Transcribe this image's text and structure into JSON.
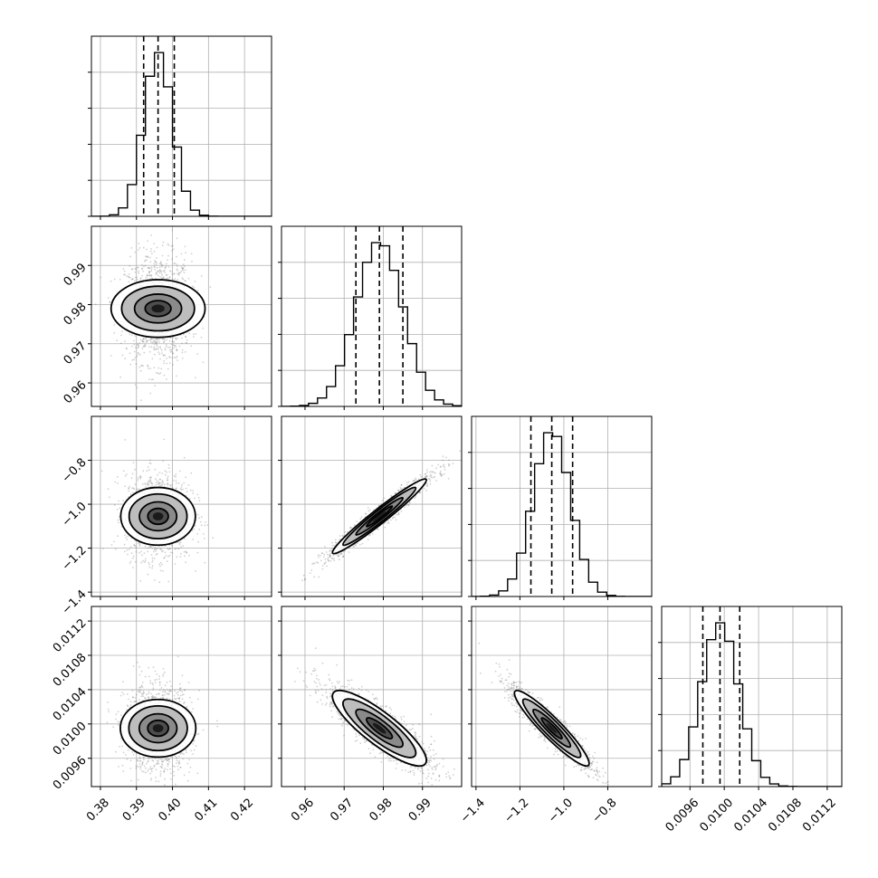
{
  "chart_data": {
    "type": "corner",
    "parameters": [
      {
        "index": 0,
        "range": [
          0.3775,
          0.4275
        ],
        "ticks": [
          "0.38",
          "0.39",
          "0.40",
          "0.41",
          "0.42"
        ],
        "tick_values": [
          0.38,
          0.39,
          0.4,
          0.41,
          0.42
        ],
        "mean": 0.396,
        "std": 0.004,
        "quantiles": [
          0.392,
          0.396,
          0.4005
        ]
      },
      {
        "index": 1,
        "range": [
          0.954,
          1.0
        ],
        "ticks": [
          "0.96",
          "0.97",
          "0.98",
          "0.99"
        ],
        "tick_values": [
          0.96,
          0.97,
          0.98,
          0.99
        ],
        "mean": 0.979,
        "std": 0.006,
        "quantiles": [
          0.973,
          0.979,
          0.985
        ]
      },
      {
        "index": 2,
        "range": [
          -1.42,
          -0.6
        ],
        "ticks": [
          "−1.4",
          "−1.2",
          "−1.0",
          "−0.8"
        ],
        "tick_values": [
          -1.4,
          -1.2,
          -1.0,
          -0.8
        ],
        "mean": -1.055,
        "std": 0.085,
        "quantiles": [
          -1.15,
          -1.055,
          -0.96
        ]
      },
      {
        "index": 3,
        "range": [
          0.00927,
          0.01137
        ],
        "ticks": [
          "0.0096",
          "0.0100",
          "0.0104",
          "0.0108",
          "0.0112"
        ],
        "tick_values": [
          0.0096,
          0.01,
          0.0104,
          0.0108,
          0.0112
        ],
        "mean": 0.00995,
        "std": 0.00022,
        "quantiles": [
          0.00975,
          0.00995,
          0.01018
        ]
      }
    ],
    "correlations": [
      [
        1,
        0.0,
        0.0,
        0.0
      ],
      [
        0.0,
        1,
        0.97,
        -0.85
      ],
      [
        0.0,
        0.97,
        1,
        -0.93
      ],
      [
        0.0,
        -0.85,
        -0.93,
        1
      ]
    ],
    "diagonal": "1D marginal histograms with 16th/50th/84th percentile dashed lines",
    "off_diagonal": "2D density with contours and scatter points",
    "grid": true
  }
}
